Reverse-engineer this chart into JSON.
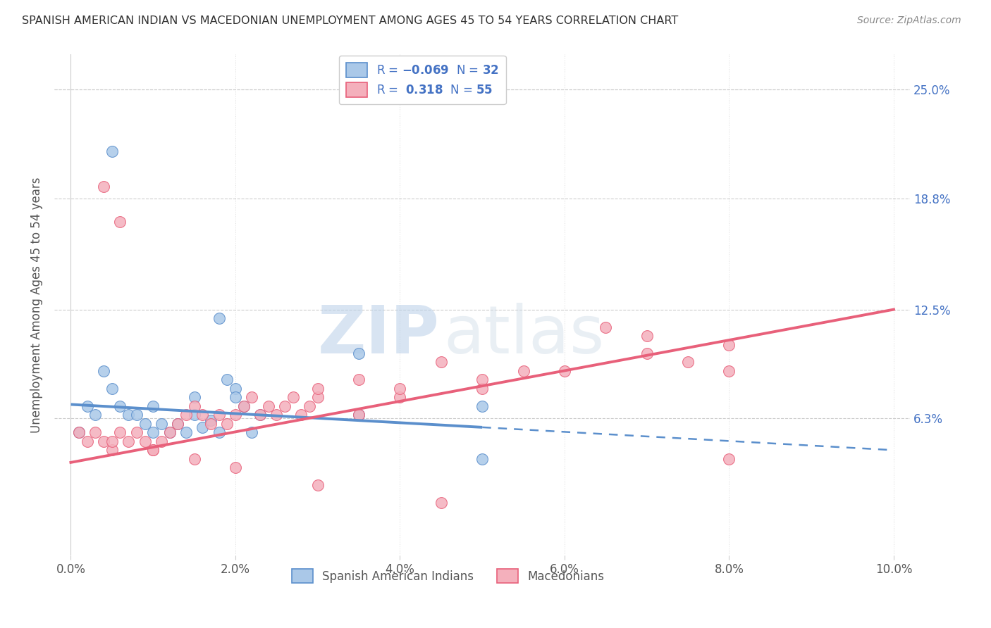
{
  "title": "SPANISH AMERICAN INDIAN VS MACEDONIAN UNEMPLOYMENT AMONG AGES 45 TO 54 YEARS CORRELATION CHART",
  "source": "Source: ZipAtlas.com",
  "ylabel": "Unemployment Among Ages 45 to 54 years",
  "xlabel_ticks": [
    "0.0%",
    "2.0%",
    "4.0%",
    "6.0%",
    "8.0%",
    "10.0%"
  ],
  "xlabel_vals": [
    0.0,
    2.0,
    4.0,
    6.0,
    8.0,
    10.0
  ],
  "ylabel_ticks": [
    "25.0%",
    "18.8%",
    "12.5%",
    "6.3%"
  ],
  "ylabel_vals": [
    25.0,
    18.8,
    12.5,
    6.3
  ],
  "xmin": 0.0,
  "xmax": 10.0,
  "ymin": -1.5,
  "ymax": 27.0,
  "ytop": 25.0,
  "blue_R": -0.069,
  "blue_N": 32,
  "pink_R": 0.318,
  "pink_N": 55,
  "blue_color": "#5b8fcc",
  "pink_color": "#e8607a",
  "blue_fill": "#aac8e8",
  "pink_fill": "#f4b0bc",
  "legend_label_blue": "Spanish American Indians",
  "legend_label_pink": "Macedonians",
  "watermark_zip": "ZIP",
  "watermark_atlas": "atlas",
  "blue_solid_end": 5.0,
  "blue_line_x0": 0.0,
  "blue_line_y0": 7.1,
  "blue_line_x1": 10.0,
  "blue_line_y1": 4.5,
  "pink_line_x0": 0.0,
  "pink_line_y0": 3.8,
  "pink_line_x1": 10.0,
  "pink_line_y1": 12.5,
  "blue_points_x": [
    0.5,
    0.1,
    0.2,
    0.3,
    0.4,
    0.5,
    0.6,
    0.7,
    0.8,
    0.9,
    1.0,
    1.0,
    1.1,
    1.2,
    1.3,
    1.4,
    1.5,
    1.5,
    1.6,
    1.7,
    1.8,
    1.9,
    2.0,
    2.0,
    2.1,
    2.2,
    2.3,
    3.5,
    3.5,
    5.0,
    5.0,
    1.8
  ],
  "blue_points_y": [
    21.5,
    5.5,
    7.0,
    6.5,
    9.0,
    8.0,
    7.0,
    6.5,
    6.5,
    6.0,
    5.5,
    7.0,
    6.0,
    5.5,
    6.0,
    5.5,
    7.5,
    6.5,
    5.8,
    6.2,
    5.5,
    8.5,
    8.0,
    7.5,
    7.0,
    5.5,
    6.5,
    10.0,
    6.5,
    7.0,
    4.0,
    12.0
  ],
  "pink_points_x": [
    0.1,
    0.2,
    0.3,
    0.4,
    0.5,
    0.5,
    0.6,
    0.7,
    0.8,
    0.9,
    1.0,
    1.1,
    1.2,
    1.3,
    1.4,
    1.5,
    1.6,
    1.7,
    1.8,
    1.9,
    2.0,
    2.1,
    2.2,
    2.3,
    2.4,
    2.5,
    2.6,
    2.7,
    2.8,
    2.9,
    3.0,
    3.0,
    3.5,
    3.5,
    4.0,
    4.0,
    4.5,
    5.0,
    5.0,
    5.5,
    6.0,
    6.5,
    7.0,
    7.0,
    7.5,
    8.0,
    8.0,
    0.4,
    0.6,
    1.0,
    1.5,
    2.0,
    3.0,
    4.5,
    8.0
  ],
  "pink_points_y": [
    5.5,
    5.0,
    5.5,
    5.0,
    4.5,
    5.0,
    5.5,
    5.0,
    5.5,
    5.0,
    4.5,
    5.0,
    5.5,
    6.0,
    6.5,
    7.0,
    6.5,
    6.0,
    6.5,
    6.0,
    6.5,
    7.0,
    7.5,
    6.5,
    7.0,
    6.5,
    7.0,
    7.5,
    6.5,
    7.0,
    7.5,
    8.0,
    8.5,
    6.5,
    7.5,
    8.0,
    9.5,
    8.0,
    8.5,
    9.0,
    9.0,
    11.5,
    11.0,
    10.0,
    9.5,
    10.5,
    9.0,
    19.5,
    17.5,
    4.5,
    4.0,
    3.5,
    2.5,
    1.5,
    4.0
  ]
}
